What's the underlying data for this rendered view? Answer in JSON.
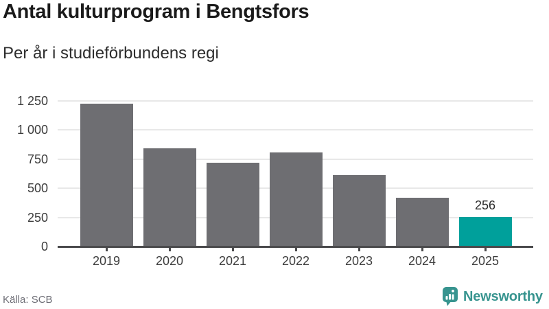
{
  "chart_data": {
    "type": "bar",
    "title": "Antal kulturprogram i Bengtsfors",
    "subtitle": "Per år i studieförbundens regi",
    "categories": [
      "2019",
      "2020",
      "2021",
      "2022",
      "2023",
      "2024",
      "2025"
    ],
    "values": [
      1225,
      845,
      720,
      810,
      615,
      420,
      256
    ],
    "data_labels": [
      null,
      null,
      null,
      null,
      null,
      null,
      "256"
    ],
    "bar_default_color": "#6e6e72",
    "highlight_color": "#00a09b",
    "bar_colors": [
      "#6e6e72",
      "#6e6e72",
      "#6e6e72",
      "#6e6e72",
      "#6e6e72",
      "#6e6e72",
      "#00a09b"
    ],
    "xlabel": "",
    "ylabel": "",
    "ylim": [
      0,
      1250
    ],
    "yticks": [
      {
        "value": 0,
        "label": "0"
      },
      {
        "value": 250,
        "label": "250"
      },
      {
        "value": 500,
        "label": "500"
      },
      {
        "value": 750,
        "label": "750"
      },
      {
        "value": 1000,
        "label": "1 000"
      },
      {
        "value": 1250,
        "label": "1 250"
      }
    ],
    "grid": true,
    "legend": false
  },
  "footer": {
    "source": "Källa: SCB",
    "brand": "Newsworthy",
    "brand_color": "#37948f",
    "logo_icon": "newsworthy-speech-bubble-bar-chart",
    "logo_glyph_color": "#ffffff"
  }
}
